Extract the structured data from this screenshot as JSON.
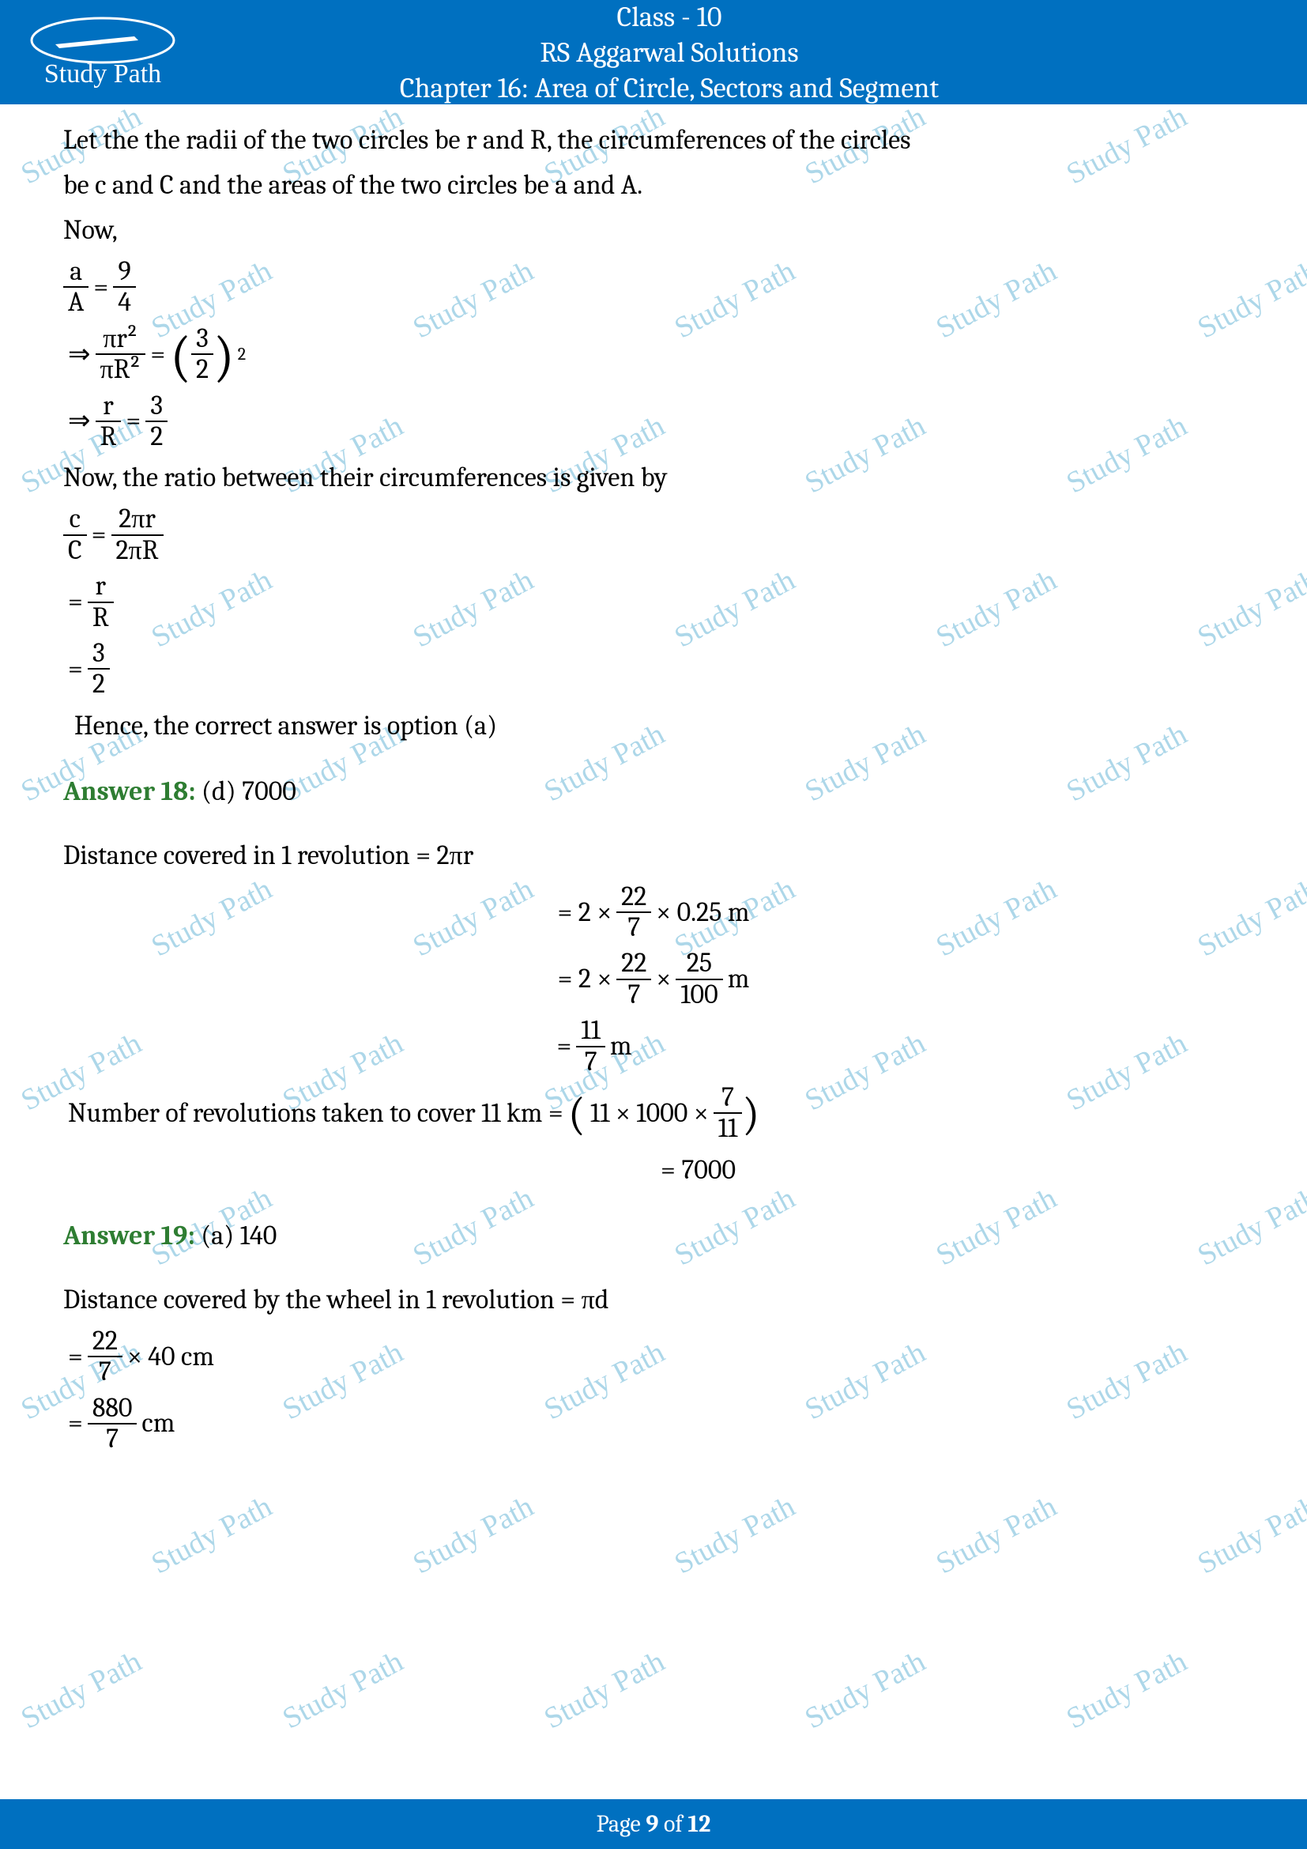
{
  "header": {
    "line1": "Class - 10",
    "line2": "RS Aggarwal Solutions",
    "line3": "Chapter 16: Area of Circle, Sectors and Segment",
    "logo_text": "Study Path",
    "brand_color": "#0070c0"
  },
  "watermark": {
    "text": "Study Path",
    "color": "#6bb8d8"
  },
  "body": {
    "intro1": "Let the the radii of the two circles be r and R, the circumferences of the circles",
    "intro2": "be c and C and the areas of the two circles be a and A.",
    "now": "Now,",
    "eq1": {
      "lhs_num": "a",
      "lhs_den": "A",
      "eq": "=",
      "rhs_num": "9",
      "rhs_den": "4"
    },
    "eq2": {
      "arrow": "⇒",
      "lhs_num": "πr²",
      "lhs_den": "πR²",
      "eq": "=",
      "rhs_open": "(",
      "rhs_inner_num": "3",
      "rhs_inner_den": "2",
      "rhs_close": ")",
      "exp": "2"
    },
    "eq3": {
      "arrow": "⇒",
      "lhs_num": "r",
      "lhs_den": "R",
      "eq": "=",
      "rhs_num": "3",
      "rhs_den": "2"
    },
    "circ_intro": "Now, the ratio between their circumferences is given by",
    "eq4": {
      "lhs_num": "c",
      "lhs_den": "C",
      "eq": "=",
      "rhs_num": "2πr",
      "rhs_den": "2πR"
    },
    "eq5": {
      "eq": "=",
      "rhs_num": "r",
      "rhs_den": "R"
    },
    "eq6": {
      "eq": "=",
      "rhs_num": "3",
      "rhs_den": "2"
    },
    "conclusion1": "Hence, the correct answer is option (a)",
    "ans18": {
      "label": "Answer 18:",
      "choice": "(d) 7000"
    },
    "dist_line": "Distance covered in 1 revolution = 2πr",
    "eq7": {
      "eq": "= 2 ×",
      "f_num": "22",
      "f_den": "7",
      "tail": "× 0.25 m"
    },
    "eq8": {
      "eq": "= 2 ×",
      "f1_num": "22",
      "f1_den": "7",
      "mid": "×",
      "f2_num": "25",
      "f2_den": "100",
      "tail": " m"
    },
    "eq9": {
      "eq": "=",
      "f_num": "11",
      "f_den": "7",
      "tail": " m"
    },
    "rev_line_pre": "Number of revolutions taken to cover 11 km =",
    "eq10": {
      "open": "(",
      "text1": "11 × 1000 ×",
      "f_num": "7",
      "f_den": "11",
      "close": ")"
    },
    "eq11": {
      "eq": "= 7000"
    },
    "ans19": {
      "label": "Answer 19:",
      "choice": "(a) 140"
    },
    "dist_wheel": "Distance covered by the wheel in 1 revolution = πd",
    "eq12": {
      "eq": "=",
      "f_num": "22",
      "f_den": "7",
      "tail": "× 40 cm"
    },
    "eq13": {
      "eq": "=",
      "f_num": "880",
      "f_den": "7",
      "tail": " cm"
    }
  },
  "footer": {
    "prefix": "Page ",
    "page": "9",
    "mid": " of ",
    "total": "12"
  }
}
